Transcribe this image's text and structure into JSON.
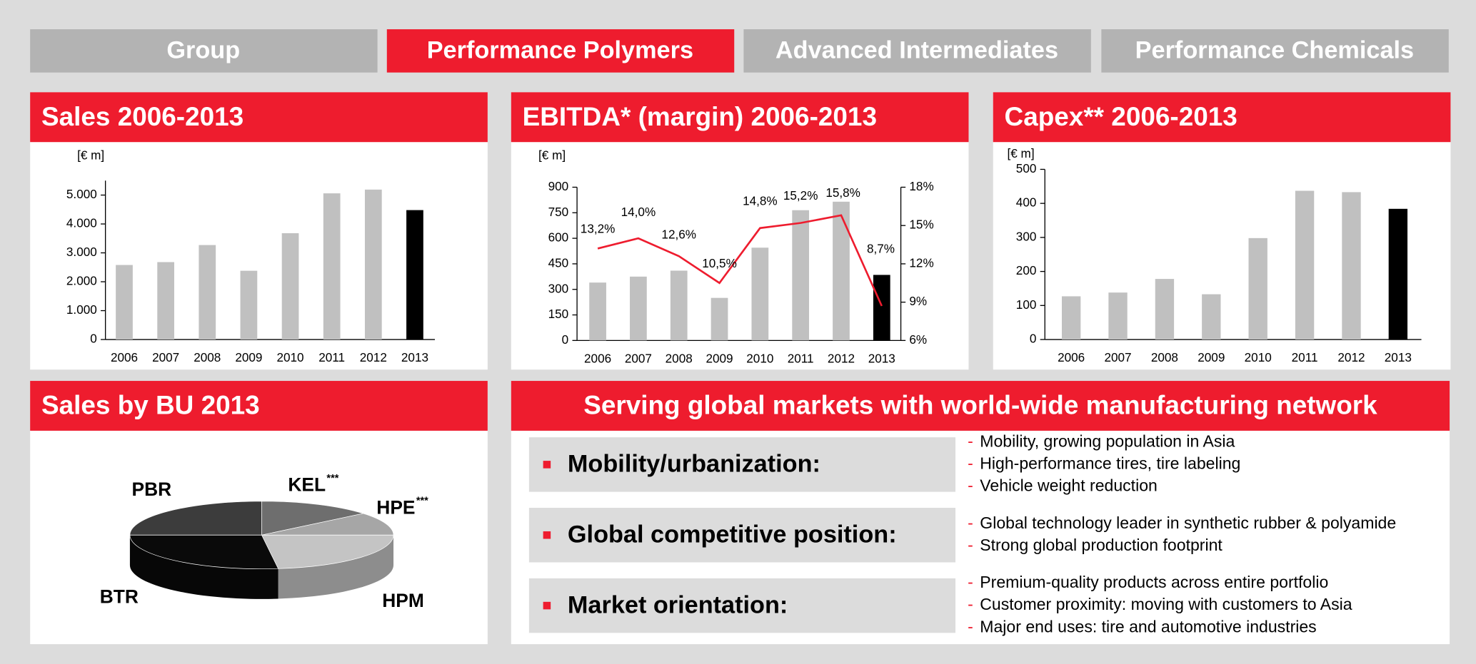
{
  "tabs": [
    {
      "label": "Group",
      "active": false
    },
    {
      "label": "Performance Polymers",
      "active": true
    },
    {
      "label": "Advanced Intermediates",
      "active": false
    },
    {
      "label": "Performance Chemicals",
      "active": false
    }
  ],
  "chart_data": [
    {
      "type": "bar",
      "title": "Sales 2006-2013",
      "unit": "[€ m]",
      "categories": [
        "2006",
        "2007",
        "2008",
        "2009",
        "2010",
        "2011",
        "2012",
        "2013"
      ],
      "values": [
        2580,
        2680,
        3270,
        2380,
        3680,
        5060,
        5190,
        4480
      ],
      "colors": [
        "#c0c0c0",
        "#c0c0c0",
        "#c0c0c0",
        "#c0c0c0",
        "#c0c0c0",
        "#c0c0c0",
        "#c0c0c0",
        "#000000"
      ],
      "ylim": [
        0,
        5500
      ],
      "yticks": [
        0,
        {
          "value": 1000,
          "label": "1.000"
        },
        {
          "value": 2000,
          "label": "2.000"
        },
        {
          "value": 3000,
          "label": "3.000"
        },
        {
          "value": 4000,
          "label": "4.000"
        },
        {
          "value": 5000,
          "label": "5.000"
        }
      ]
    },
    {
      "type": "bar",
      "title": "EBITDA* (margin) 2006-2013",
      "unit": "[€ m]",
      "categories": [
        "2006",
        "2007",
        "2008",
        "2009",
        "2010",
        "2011",
        "2012",
        "2013"
      ],
      "values": [
        340,
        375,
        410,
        250,
        545,
        765,
        815,
        385
      ],
      "colors": [
        "#c0c0c0",
        "#c0c0c0",
        "#c0c0c0",
        "#c0c0c0",
        "#c0c0c0",
        "#c0c0c0",
        "#c0c0c0",
        "#000000"
      ],
      "ylim": [
        0,
        900
      ],
      "yticks": [
        0,
        150,
        300,
        450,
        600,
        750,
        900
      ],
      "line": {
        "axis": "y2",
        "color": "#ee1c2e",
        "values": [
          13.2,
          14.0,
          12.6,
          10.5,
          14.8,
          15.2,
          15.8,
          8.7
        ],
        "value_labels": [
          "13,2%",
          "14,0%",
          "12,6%",
          "10,5%",
          "14,8%",
          "15,2%",
          "15,8%",
          "8,7%"
        ]
      },
      "y2lim": [
        6,
        18
      ],
      "y2ticks": [
        {
          "value": 6,
          "label": "6%"
        },
        {
          "value": 9,
          "label": "9%"
        },
        {
          "value": 12,
          "label": "12%"
        },
        {
          "value": 15,
          "label": "15%"
        },
        {
          "value": 18,
          "label": "18%"
        }
      ]
    },
    {
      "type": "bar",
      "title": "Capex** 2006-2013",
      "unit": "[€ m]",
      "categories": [
        "2006",
        "2007",
        "2008",
        "2009",
        "2010",
        "2011",
        "2012",
        "2013"
      ],
      "values": [
        127,
        138,
        178,
        133,
        298,
        437,
        433,
        384
      ],
      "colors": [
        "#c0c0c0",
        "#c0c0c0",
        "#c0c0c0",
        "#c0c0c0",
        "#c0c0c0",
        "#c0c0c0",
        "#c0c0c0",
        "#000000"
      ],
      "ylim": [
        0,
        500
      ],
      "yticks": [
        0,
        100,
        200,
        300,
        400,
        500
      ]
    },
    {
      "type": "pie",
      "title": "Sales by BU 2013",
      "slices": [
        {
          "name": "PBR",
          "value": 25,
          "color": "#3c3c3c"
        },
        {
          "name": "KEL",
          "superscript": "***",
          "value": 14,
          "color": "#6e6e6e"
        },
        {
          "name": "HPE",
          "superscript": "***",
          "value": 11,
          "color": "#a6a6a6"
        },
        {
          "name": "HPM",
          "value": 23,
          "color": "#c4c4c4"
        },
        {
          "name": "BTR",
          "value": 27,
          "color": "#0a0a0a"
        }
      ]
    }
  ],
  "markets": {
    "title": "Serving global markets with world-wide manufacturing network",
    "items": [
      {
        "label": "Mobility/urbanization:",
        "points": [
          "Mobility, growing population in Asia",
          "High-performance tires, tire labeling",
          "Vehicle weight reduction"
        ]
      },
      {
        "label": "Global competitive position:",
        "points": [
          "Global technology leader in synthetic rubber & polyamide",
          "Strong global production footprint"
        ]
      },
      {
        "label": "Market orientation:",
        "points": [
          "Premium-quality products across entire portfolio",
          "Customer proximity: moving with customers to Asia",
          "Major end uses: tire and automotive industries"
        ]
      }
    ]
  }
}
